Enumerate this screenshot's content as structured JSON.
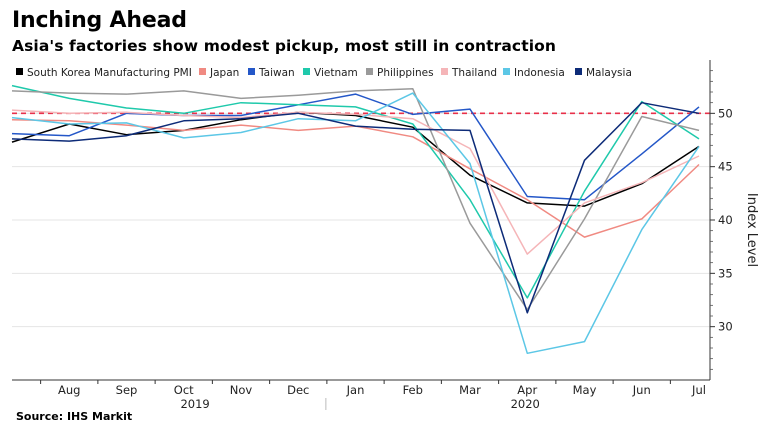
{
  "title": "Inching Ahead",
  "subtitle": "Asia's factories show modest pickup, most still in contraction",
  "source": "Source: IHS Markit",
  "chart_data": {
    "type": "line",
    "title": "Inching Ahead",
    "subtitle": "Asia's factories show modest pickup, most still in contraction",
    "ylabel": "Index Level",
    "xlabel": "",
    "x": [
      "Jul",
      "Aug",
      "Sep",
      "Oct",
      "Nov",
      "Dec",
      "Jan",
      "Feb",
      "Mar",
      "Apr",
      "May",
      "Jun",
      "Jul"
    ],
    "x_tick_labels": [
      "Aug",
      "Sep",
      "Oct",
      "Nov",
      "Dec",
      "Jan",
      "Feb",
      "Mar",
      "Apr",
      "May",
      "Jun",
      "Jul"
    ],
    "year_labels": [
      "2019",
      "2020"
    ],
    "ylim": [
      25,
      55
    ],
    "yticks": [
      30,
      35,
      40,
      45,
      50
    ],
    "reference_line": {
      "value": 50,
      "color": "#e8304a",
      "style": "dashed"
    },
    "grid": "horizontal",
    "legend_position": "top",
    "series": [
      {
        "name": "South Korea Manufacturing PMI",
        "color": "#000000",
        "values": [
          47.3,
          49.0,
          48.0,
          48.4,
          49.4,
          50.1,
          49.8,
          48.7,
          44.2,
          41.6,
          41.3,
          43.4,
          46.9
        ]
      },
      {
        "name": "Japan",
        "color": "#f08a82",
        "values": [
          49.4,
          49.3,
          48.9,
          48.4,
          48.9,
          48.4,
          48.8,
          47.8,
          44.8,
          41.9,
          38.4,
          40.1,
          45.2
        ]
      },
      {
        "name": "Taiwan",
        "color": "#2457c8",
        "values": [
          48.1,
          47.9,
          50.0,
          49.8,
          49.8,
          50.8,
          51.8,
          49.9,
          50.4,
          42.2,
          41.9,
          46.2,
          50.6
        ]
      },
      {
        "name": "Vietnam",
        "color": "#1fc9ab",
        "values": [
          52.6,
          51.4,
          50.5,
          50.0,
          51.0,
          50.8,
          50.6,
          49.0,
          41.9,
          32.7,
          42.7,
          51.1,
          47.6
        ]
      },
      {
        "name": "Philippines",
        "color": "#9a9a9a",
        "values": [
          52.1,
          51.9,
          51.8,
          52.1,
          51.4,
          51.7,
          52.1,
          52.3,
          39.7,
          31.6,
          40.1,
          49.7,
          48.4
        ]
      },
      {
        "name": "Thailand",
        "color": "#f5b5b8",
        "values": [
          50.3,
          50.0,
          50.1,
          49.8,
          49.6,
          50.1,
          49.9,
          49.5,
          46.7,
          36.8,
          41.6,
          43.5,
          46.0
        ]
      },
      {
        "name": "Indonesia",
        "color": "#5cc7e6",
        "values": [
          49.6,
          49.0,
          49.1,
          47.7,
          48.2,
          49.5,
          49.3,
          51.9,
          45.3,
          27.5,
          28.6,
          39.1,
          46.9
        ]
      },
      {
        "name": "Malaysia",
        "color": "#0d2b78",
        "values": [
          47.6,
          47.4,
          47.9,
          49.3,
          49.5,
          50.0,
          48.8,
          48.5,
          48.4,
          31.3,
          45.6,
          51.0,
          50.0
        ]
      }
    ]
  }
}
